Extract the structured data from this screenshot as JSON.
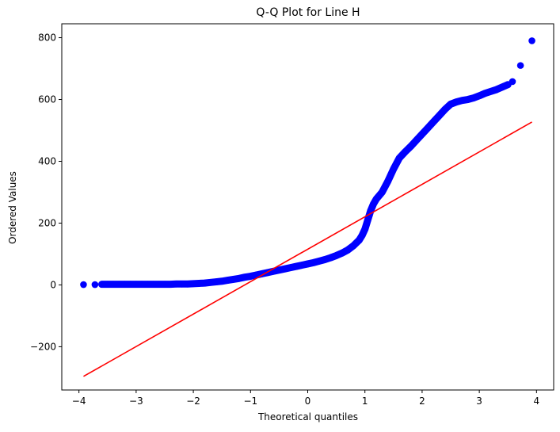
{
  "chart_data": {
    "type": "scatter",
    "title": "Q-Q Plot for Line H",
    "xlabel": "Theoretical quantiles",
    "ylabel": "Ordered Values",
    "xlim": [
      -4.3,
      4.3
    ],
    "ylim": [
      -340,
      845
    ],
    "xticks": [
      -4,
      -3,
      -2,
      -1,
      0,
      1,
      2,
      3,
      4
    ],
    "yticks": [
      -200,
      0,
      200,
      400,
      600,
      800
    ],
    "grid": false,
    "legend": "none",
    "colors": {
      "points": "#0000ff",
      "line": "#ff0000"
    },
    "series": [
      {
        "kind": "points",
        "points": [
          [
            -3.92,
            1
          ],
          [
            -3.72,
            1
          ],
          [
            -3.6,
            2
          ],
          [
            -3.5,
            2
          ],
          [
            -3.4,
            2
          ],
          [
            -3.3,
            2
          ],
          [
            -3.2,
            2
          ],
          [
            -3.1,
            2
          ],
          [
            -3.0,
            2
          ],
          [
            -2.9,
            2
          ],
          [
            -2.8,
            2
          ],
          [
            -2.7,
            2
          ],
          [
            -2.6,
            2
          ],
          [
            -2.5,
            2
          ],
          [
            -2.4,
            2
          ],
          [
            -2.3,
            3
          ],
          [
            -2.2,
            3
          ],
          [
            -2.1,
            3
          ],
          [
            -2.0,
            4
          ],
          [
            -1.9,
            5
          ],
          [
            -1.8,
            6
          ],
          [
            -1.7,
            8
          ],
          [
            -1.6,
            10
          ],
          [
            -1.5,
            12
          ],
          [
            -1.4,
            15
          ],
          [
            -1.3,
            18
          ],
          [
            -1.2,
            21
          ],
          [
            -1.1,
            25
          ],
          [
            -1.0,
            28
          ],
          [
            -0.9,
            32
          ],
          [
            -0.8,
            36
          ],
          [
            -0.7,
            40
          ],
          [
            -0.6,
            44
          ],
          [
            -0.5,
            48
          ],
          [
            -0.4,
            52
          ],
          [
            -0.3,
            56
          ],
          [
            -0.2,
            60
          ],
          [
            -0.1,
            64
          ],
          [
            0.0,
            68
          ],
          [
            0.1,
            72
          ],
          [
            0.2,
            77
          ],
          [
            0.3,
            82
          ],
          [
            0.4,
            88
          ],
          [
            0.5,
            95
          ],
          [
            0.6,
            103
          ],
          [
            0.7,
            113
          ],
          [
            0.8,
            127
          ],
          [
            0.9,
            145
          ],
          [
            0.95,
            160
          ],
          [
            1.0,
            180
          ],
          [
            1.05,
            210
          ],
          [
            1.1,
            240
          ],
          [
            1.15,
            262
          ],
          [
            1.2,
            278
          ],
          [
            1.3,
            300
          ],
          [
            1.4,
            335
          ],
          [
            1.5,
            375
          ],
          [
            1.6,
            410
          ],
          [
            1.7,
            430
          ],
          [
            1.8,
            448
          ],
          [
            1.9,
            468
          ],
          [
            2.0,
            488
          ],
          [
            2.1,
            508
          ],
          [
            2.2,
            528
          ],
          [
            2.3,
            548
          ],
          [
            2.4,
            568
          ],
          [
            2.5,
            585
          ],
          [
            2.6,
            592
          ],
          [
            2.7,
            597
          ],
          [
            2.8,
            600
          ],
          [
            2.9,
            605
          ],
          [
            3.0,
            612
          ],
          [
            3.1,
            620
          ],
          [
            3.2,
            626
          ],
          [
            3.3,
            632
          ],
          [
            3.4,
            640
          ],
          [
            3.5,
            648
          ],
          [
            3.58,
            658
          ],
          [
            3.72,
            710
          ],
          [
            3.92,
            790
          ]
        ]
      },
      {
        "kind": "line",
        "points": [
          [
            -3.92,
            -296
          ],
          [
            3.92,
            527
          ]
        ]
      }
    ]
  }
}
